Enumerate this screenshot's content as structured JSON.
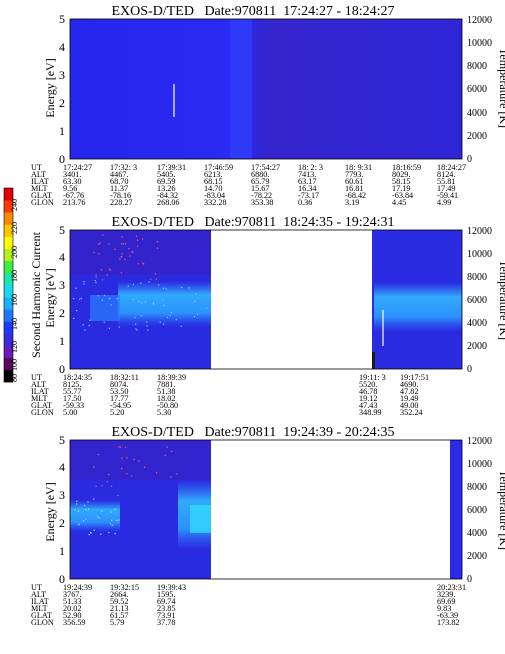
{
  "instrument": "EXOS-D/TED",
  "date_label": "Date:970811",
  "colorbar": {
    "label": "Second Harmonic Current",
    "ticks": [
      "240",
      "220",
      "200",
      "180",
      "160",
      "140",
      "120",
      "100",
      "80"
    ],
    "colors": [
      "#000000",
      "#5a0a5a",
      "#6a1ab8",
      "#3a2ad8",
      "#1e3cff",
      "#1f78ff",
      "#19b0ff",
      "#18d8f0",
      "#18e6b0",
      "#3cf040",
      "#b4f020",
      "#ffff00",
      "#ffc400",
      "#ff8a00",
      "#ff3c00",
      "#e00000"
    ]
  },
  "chart_data": [
    {
      "type": "heatmap",
      "time_range": "17:24:27 - 18:24:27",
      "ylabel": "Energy [eV]",
      "ylim": [
        0,
        5
      ],
      "yticks": [
        "0",
        "1",
        "2",
        "3",
        "4",
        "5"
      ],
      "ylabel_right": "Temperature [K]",
      "ylim_right": [
        0,
        12000
      ],
      "yticks_right": [
        "0",
        "2000",
        "4000",
        "6000",
        "8000",
        "10000",
        "12000"
      ],
      "data_coverage": [
        [
          0,
          1
        ]
      ],
      "orbit_table": {
        "labels": [
          "UT",
          "ALT",
          "ILAT",
          "MLT",
          "GLAT",
          "GLON"
        ],
        "columns": [
          [
            "17:24:27",
            "3401.",
            "63.30",
            "9.56",
            "-67.76",
            "213.76"
          ],
          [
            "17:32: 3",
            "4467.",
            "68.70",
            "11.37",
            "-78.16",
            "228.27"
          ],
          [
            "17:39:31",
            "5405.",
            "69.59",
            "13.26",
            "-84.32",
            "268.06"
          ],
          [
            "17:46:59",
            "6213.",
            "68.15",
            "14.70",
            "-83.04",
            "332.28"
          ],
          [
            "17:54:27",
            "6880.",
            "65.79",
            "15.67",
            "-78.22",
            "353.38"
          ],
          [
            "18: 2: 3",
            "7413.",
            "63.17",
            "16.34",
            "-73.17",
            "0.36"
          ],
          [
            "18: 9:31",
            "7793.",
            "60.61",
            "16.81",
            "-68.42",
            "3.19"
          ],
          [
            "18:16:59",
            "8029.",
            "58.15",
            "17.19",
            "-63.84",
            "4.45"
          ],
          [
            "18:24:27",
            "8124.",
            "55.81",
            "17.49",
            "-59.41",
            "4.99"
          ]
        ]
      }
    },
    {
      "type": "heatmap",
      "time_range": "18:24:35 - 19:24:31",
      "ylabel": "Energy [eV]",
      "ylim": [
        0,
        5
      ],
      "yticks": [
        "0",
        "1",
        "2",
        "3",
        "4",
        "5"
      ],
      "ylabel_right": "Temperature [K]",
      "ylim_right": [
        0,
        12000
      ],
      "yticks_right": [
        "0",
        "2000",
        "4000",
        "6000",
        "8000",
        "10000",
        "12000"
      ],
      "data_coverage": [
        [
          0,
          0.375
        ],
        [
          0.78,
          1
        ]
      ],
      "orbit_table": {
        "labels": [
          "UT",
          "ALT",
          "ILAT",
          "MLT",
          "GLAT",
          "GLON"
        ],
        "columns": [
          [
            "18:24:35",
            "8125.",
            "55.77",
            "17.50",
            "-59.33",
            "5.00"
          ],
          [
            "18:32:11",
            "8074.",
            "53.50",
            "17.77",
            "-54.95",
            "5.20"
          ],
          [
            "18:39:39",
            "7881.",
            "51.38",
            "18.02",
            "-50.80",
            "5.30"
          ],
          [
            "19:11: 3",
            "5520.",
            "46.78",
            "19.12",
            "47.43",
            "348.99"
          ],
          [
            "19:17:51",
            "4690.",
            "47.82",
            "19.49",
            "49.00",
            "352.24"
          ]
        ]
      }
    },
    {
      "type": "heatmap",
      "time_range": "19:24:39 - 20:24:35",
      "ylabel": "Energy [eV]",
      "ylim": [
        0,
        5
      ],
      "yticks": [
        "0",
        "1",
        "2",
        "3",
        "4",
        "5"
      ],
      "ylabel_right": "Temperature [K]",
      "ylim_right": [
        0,
        12000
      ],
      "yticks_right": [
        "0",
        "2000",
        "4000",
        "6000",
        "8000",
        "10000",
        "12000"
      ],
      "data_coverage": [
        [
          0,
          0.375
        ],
        [
          0.955,
          1
        ]
      ],
      "orbit_table": {
        "labels": [
          "UT",
          "ALT",
          "ILAT",
          "MLT",
          "GLAT",
          "GLON"
        ],
        "columns": [
          [
            "19:24:39",
            "3767.",
            "51.33",
            "20.02",
            "52.90",
            "356.59"
          ],
          [
            "19:32:15",
            "2664.",
            "59.52",
            "21.13",
            "61.57",
            "5.79"
          ],
          [
            "19:39:43",
            "1595.",
            "69.74",
            "23.85",
            "73.91",
            "37.78"
          ],
          [
            "20:23:31",
            "3239.",
            "69.69",
            "9.83",
            "-63.39",
            "173.82"
          ]
        ]
      }
    }
  ]
}
